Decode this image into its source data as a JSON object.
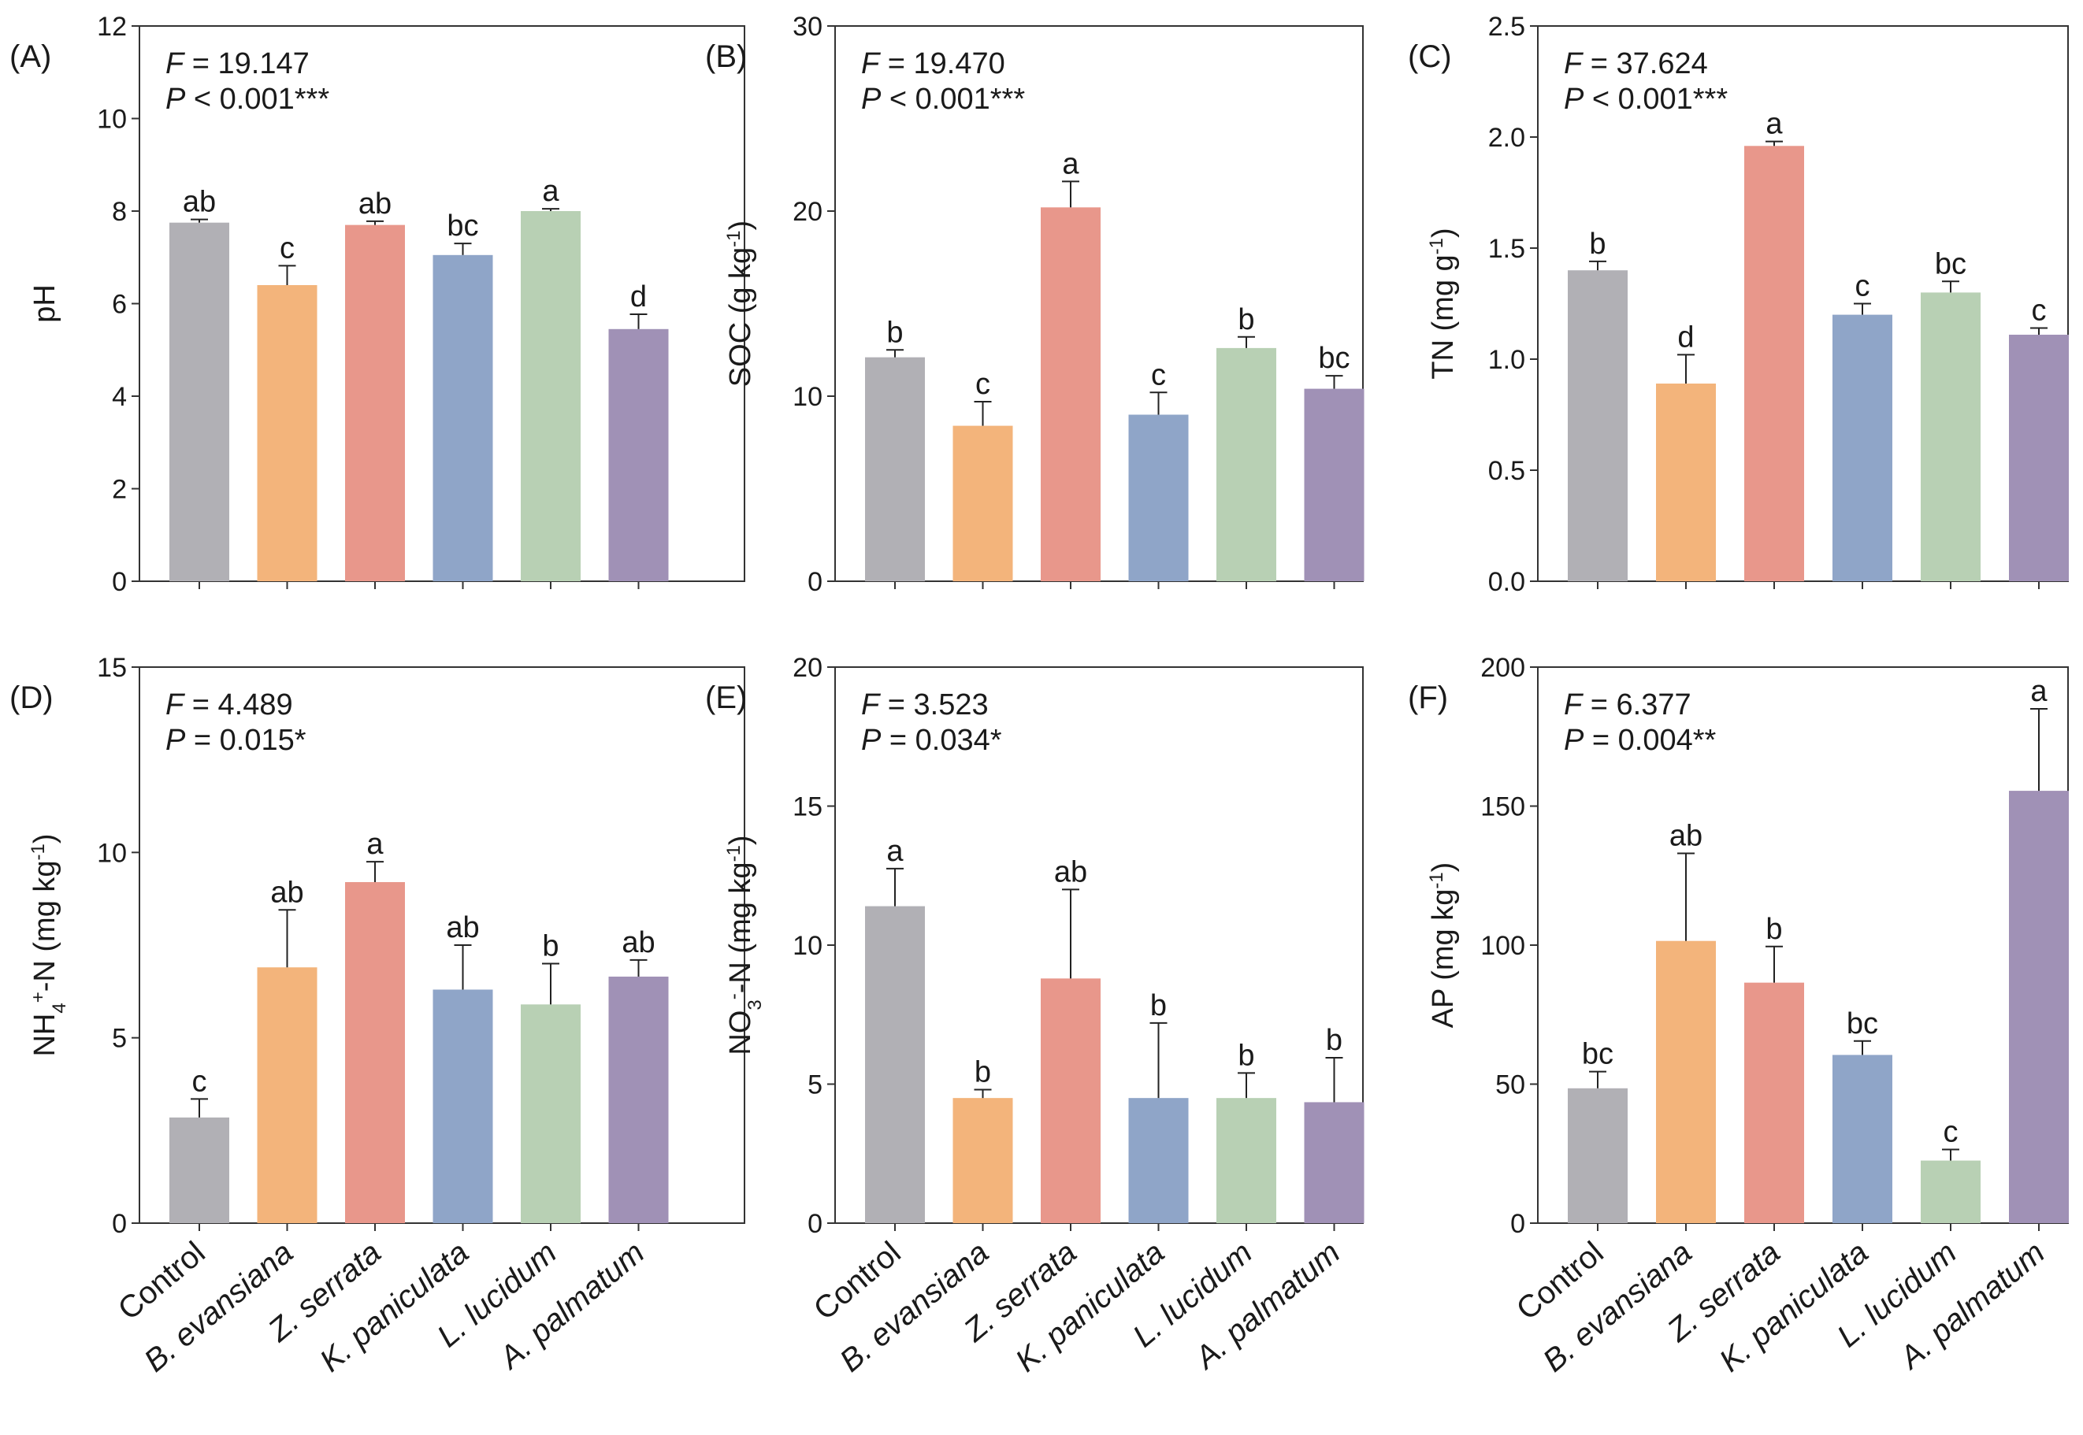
{
  "categories": [
    "Control",
    "B. evansiana",
    "Z. serrata",
    "K. paniculata",
    "L. lucidum",
    "A. palmatum"
  ],
  "category_italic": [
    false,
    true,
    true,
    true,
    true,
    true
  ],
  "colors": [
    "#b1b0b5",
    "#f3b47b",
    "#e8978b",
    "#8fa5c8",
    "#b8d0b4",
    "#a091b6"
  ],
  "chart_data": [
    {
      "type": "bar",
      "panel": "(A)",
      "ylabel": "pH",
      "ylim": [
        0,
        12
      ],
      "yticks": [
        0,
        2,
        4,
        6,
        8,
        10,
        12
      ],
      "tick_labels": [
        "0",
        "2",
        "4",
        "6",
        "8",
        "10",
        "12"
      ],
      "values": [
        7.75,
        6.4,
        7.7,
        7.05,
        8.0,
        5.45
      ],
      "errors": [
        0.07,
        0.42,
        0.08,
        0.25,
        0.05,
        0.32
      ],
      "letters": [
        "ab",
        "c",
        "ab",
        "bc",
        "a",
        "d"
      ],
      "stat_f_value": "19.147",
      "stat_p_value": "< 0.001***"
    },
    {
      "type": "bar",
      "panel": "(B)",
      "ylabel": "SOC (g kg-1)",
      "ylim": [
        0,
        30
      ],
      "yticks": [
        0,
        10,
        20,
        30
      ],
      "tick_labels": [
        "0",
        "10",
        "20",
        "30"
      ],
      "values": [
        12.1,
        8.4,
        20.2,
        9.0,
        12.6,
        10.4
      ],
      "errors": [
        0.4,
        1.3,
        1.4,
        1.2,
        0.6,
        0.7
      ],
      "letters": [
        "b",
        "c",
        "a",
        "c",
        "b",
        "bc"
      ],
      "stat_f_value": "19.470",
      "stat_p_value": "< 0.001***"
    },
    {
      "type": "bar",
      "panel": "(C)",
      "ylabel": "TN (mg g-1)",
      "ylim": [
        0,
        2.5
      ],
      "yticks": [
        0,
        0.5,
        1.0,
        1.5,
        2.0,
        2.5
      ],
      "tick_labels": [
        "0.0",
        "0.5",
        "1.0",
        "1.5",
        "2.0",
        "2.5"
      ],
      "values": [
        1.4,
        0.89,
        1.96,
        1.2,
        1.3,
        1.11
      ],
      "errors": [
        0.04,
        0.13,
        0.02,
        0.05,
        0.05,
        0.03
      ],
      "letters": [
        "b",
        "d",
        "a",
        "c",
        "bc",
        "c"
      ],
      "stat_f_value": "37.624",
      "stat_p_value": "< 0.001***"
    },
    {
      "type": "bar",
      "panel": "(D)",
      "ylabel": "NH4+-N (mg kg-1)",
      "ylim": [
        0,
        15
      ],
      "yticks": [
        0,
        5,
        10,
        15
      ],
      "tick_labels": [
        "0",
        "5",
        "10",
        "15"
      ],
      "values": [
        2.85,
        6.9,
        9.2,
        6.3,
        5.9,
        6.65
      ],
      "errors": [
        0.5,
        1.55,
        0.55,
        1.2,
        1.1,
        0.45
      ],
      "letters": [
        "c",
        "ab",
        "a",
        "ab",
        "b",
        "ab"
      ],
      "stat_f_value": "4.489",
      "stat_p_value": "= 0.015*"
    },
    {
      "type": "bar",
      "panel": "(E)",
      "ylabel": "NO3--N (mg kg-1)",
      "ylim": [
        0,
        20
      ],
      "yticks": [
        0,
        5,
        10,
        15,
        20
      ],
      "tick_labels": [
        "0",
        "5",
        "10",
        "15",
        "20"
      ],
      "values": [
        11.4,
        4.5,
        8.8,
        4.5,
        4.5,
        4.35
      ],
      "errors": [
        1.35,
        0.3,
        3.2,
        2.7,
        0.9,
        1.6
      ],
      "letters": [
        "a",
        "b",
        "ab",
        "b",
        "b",
        "b"
      ],
      "stat_f_value": "3.523",
      "stat_p_value": "= 0.034*"
    },
    {
      "type": "bar",
      "panel": "(F)",
      "ylabel": "AP (mg kg-1)",
      "ylim": [
        0,
        200
      ],
      "yticks": [
        0,
        50,
        100,
        150,
        200
      ],
      "tick_labels": [
        "0",
        "50",
        "100",
        "150",
        "200"
      ],
      "values": [
        48.5,
        101.5,
        86.5,
        60.5,
        22.5,
        155.5
      ],
      "errors": [
        6,
        31.5,
        13,
        5,
        4,
        29.5
      ],
      "letters": [
        "bc",
        "ab",
        "b",
        "bc",
        "c",
        "a"
      ],
      "stat_f_value": "6.377",
      "stat_p_value": "= 0.004**"
    }
  ]
}
